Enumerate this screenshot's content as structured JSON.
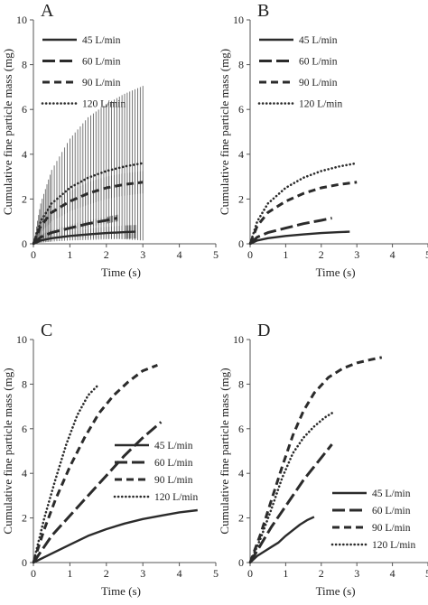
{
  "figure": {
    "ylabel": "Cumulative fine particle mass (mg)",
    "xlabel": "Time (s)"
  },
  "chart_data": [
    {
      "panel": "A",
      "type": "line",
      "xlim": [
        0,
        5
      ],
      "ylim": [
        0,
        10
      ],
      "xticks": [
        "0",
        "1",
        "2",
        "3",
        "4",
        "5"
      ],
      "yticks": [
        "0",
        "2",
        "4",
        "6",
        "8",
        "10"
      ],
      "legend": "top-left",
      "error_bars": true,
      "series": [
        {
          "name": "45 L/min",
          "style": "solid",
          "x": [
            0,
            0.2,
            0.5,
            1.0,
            1.5,
            2.0,
            2.5,
            2.8
          ],
          "y": [
            0,
            0.15,
            0.25,
            0.35,
            0.42,
            0.48,
            0.52,
            0.54
          ],
          "err": [
            0,
            0.1,
            0.15,
            0.2,
            0.25,
            0.28,
            0.3,
            0.3
          ]
        },
        {
          "name": "60 L/min",
          "style": "longdash",
          "x": [
            0,
            0.2,
            0.5,
            1.0,
            1.5,
            2.0,
            2.3
          ],
          "y": [
            0,
            0.3,
            0.5,
            0.7,
            0.9,
            1.05,
            1.15
          ],
          "err": [
            0,
            0.1,
            0.12,
            0.15,
            0.15,
            0.15,
            0.15
          ]
        },
        {
          "name": "90 L/min",
          "style": "dash",
          "x": [
            0,
            0.2,
            0.5,
            1.0,
            1.5,
            2.0,
            2.5,
            3.0
          ],
          "y": [
            0,
            0.8,
            1.4,
            1.9,
            2.25,
            2.5,
            2.65,
            2.75
          ],
          "err": [
            0,
            0.3,
            0.4,
            0.45,
            0.5,
            0.5,
            0.5,
            0.5
          ]
        },
        {
          "name": "120 L/min",
          "style": "dot",
          "x": [
            0,
            0.2,
            0.5,
            1.0,
            1.5,
            2.0,
            2.5,
            3.0
          ],
          "y": [
            0,
            1.0,
            1.8,
            2.5,
            2.95,
            3.25,
            3.45,
            3.6
          ],
          "err": [
            0,
            0.8,
            1.5,
            2.2,
            2.7,
            3.0,
            3.25,
            3.45
          ]
        }
      ]
    },
    {
      "panel": "B",
      "type": "line",
      "xlim": [
        0,
        5
      ],
      "ylim": [
        0,
        10
      ],
      "xticks": [
        "0",
        "1",
        "2",
        "3",
        "4",
        "5"
      ],
      "yticks": [
        "0",
        "2",
        "4",
        "6",
        "8",
        "10"
      ],
      "legend": "top-left",
      "series": [
        {
          "name": "45 L/min",
          "style": "solid",
          "x": [
            0,
            0.2,
            0.5,
            1.0,
            1.5,
            2.0,
            2.5,
            2.8
          ],
          "y": [
            0,
            0.15,
            0.25,
            0.35,
            0.42,
            0.48,
            0.52,
            0.54
          ]
        },
        {
          "name": "60 L/min",
          "style": "longdash",
          "x": [
            0,
            0.2,
            0.5,
            1.0,
            1.5,
            2.0,
            2.3
          ],
          "y": [
            0,
            0.3,
            0.5,
            0.7,
            0.9,
            1.05,
            1.15
          ]
        },
        {
          "name": "90 L/min",
          "style": "dash",
          "x": [
            0,
            0.2,
            0.5,
            1.0,
            1.5,
            2.0,
            2.5,
            3.0
          ],
          "y": [
            0,
            0.8,
            1.4,
            1.9,
            2.25,
            2.5,
            2.65,
            2.75
          ]
        },
        {
          "name": "120 L/min",
          "style": "dot",
          "x": [
            0,
            0.2,
            0.5,
            1.0,
            1.5,
            2.0,
            2.5,
            3.0
          ],
          "y": [
            0,
            1.0,
            1.8,
            2.5,
            2.95,
            3.25,
            3.45,
            3.6
          ]
        }
      ]
    },
    {
      "panel": "C",
      "type": "line",
      "xlim": [
        0,
        5
      ],
      "ylim": [
        0,
        10
      ],
      "xticks": [
        "0",
        "1",
        "2",
        "3",
        "4",
        "5"
      ],
      "yticks": [
        "0",
        "2",
        "4",
        "6",
        "8",
        "10"
      ],
      "legend": "center-right",
      "series": [
        {
          "name": "45 L/min",
          "style": "solid",
          "x": [
            0,
            0.5,
            1.0,
            1.5,
            2.0,
            2.5,
            3.0,
            3.5,
            4.0,
            4.5
          ],
          "y": [
            0,
            0.4,
            0.8,
            1.2,
            1.5,
            1.75,
            1.95,
            2.1,
            2.25,
            2.35
          ]
        },
        {
          "name": "60 L/min",
          "style": "longdash",
          "x": [
            0,
            0.5,
            1.0,
            1.5,
            2.0,
            2.5,
            3.0,
            3.5
          ],
          "y": [
            0,
            1.2,
            2.1,
            3.0,
            3.9,
            4.8,
            5.6,
            6.3
          ]
        },
        {
          "name": "90 L/min",
          "style": "dash",
          "x": [
            0,
            0.3,
            0.6,
            1.0,
            1.4,
            1.8,
            2.2,
            2.6,
            3.0,
            3.4
          ],
          "y": [
            0,
            1.5,
            2.8,
            4.3,
            5.6,
            6.7,
            7.5,
            8.1,
            8.6,
            8.85
          ]
        },
        {
          "name": "120 L/min",
          "style": "dot",
          "x": [
            0,
            0.3,
            0.6,
            0.9,
            1.2,
            1.5,
            1.8
          ],
          "y": [
            0,
            2.0,
            3.7,
            5.3,
            6.6,
            7.5,
            8.0
          ]
        }
      ]
    },
    {
      "panel": "D",
      "type": "line",
      "xlim": [
        0,
        5
      ],
      "ylim": [
        0,
        10
      ],
      "xticks": [
        "0",
        "1",
        "2",
        "3",
        "4",
        "5"
      ],
      "yticks": [
        "0",
        "2",
        "4",
        "6",
        "8",
        "10"
      ],
      "legend": "bottom-right",
      "series": [
        {
          "name": "45 L/min",
          "style": "solid",
          "x": [
            0,
            0.2,
            0.4,
            0.6,
            0.8,
            1.0,
            1.2,
            1.4,
            1.6,
            1.8
          ],
          "y": [
            0,
            0.3,
            0.5,
            0.7,
            0.9,
            1.2,
            1.45,
            1.7,
            1.9,
            2.05
          ]
        },
        {
          "name": "60 L/min",
          "style": "longdash",
          "x": [
            0,
            0.3,
            0.6,
            0.9,
            1.2,
            1.5,
            1.8,
            2.1,
            2.3
          ],
          "y": [
            0,
            0.8,
            1.6,
            2.3,
            3.0,
            3.7,
            4.3,
            4.9,
            5.3
          ]
        },
        {
          "name": "90 L/min",
          "style": "dash",
          "x": [
            0,
            0.3,
            0.6,
            0.9,
            1.2,
            1.5,
            1.8,
            2.2,
            2.6,
            3.0,
            3.4,
            3.7
          ],
          "y": [
            0,
            1.3,
            2.8,
            4.3,
            5.7,
            6.8,
            7.6,
            8.3,
            8.7,
            8.95,
            9.1,
            9.2
          ]
        },
        {
          "name": "120 L/min",
          "style": "dot",
          "x": [
            0,
            0.3,
            0.6,
            0.9,
            1.2,
            1.5,
            1.8,
            2.1,
            2.3
          ],
          "y": [
            0,
            1.1,
            2.4,
            3.8,
            4.9,
            5.6,
            6.1,
            6.5,
            6.7
          ]
        }
      ]
    }
  ]
}
